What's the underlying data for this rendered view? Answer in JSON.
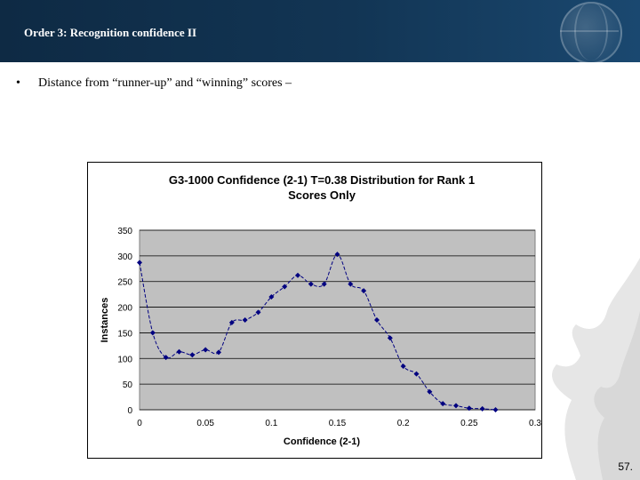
{
  "slide": {
    "title": "Order 3: Recognition confidence II",
    "bullet_symbol": "•",
    "bullet_text": "Distance from “runner-up” and “winning” scores –",
    "page_number": "57."
  },
  "colors": {
    "header_bg": "#123554",
    "plot_bg": "#c0c0c0",
    "series": "#000080"
  },
  "chart_data": {
    "type": "line",
    "title": "G3-1000 Confidence (2-1) T=0.38 Distribution for Rank 1 Scores Only",
    "title_lines": [
      "G3-1000 Confidence (2-1) T=0.38 Distribution for Rank 1",
      "Scores Only"
    ],
    "xlabel": "Confidence (2-1)",
    "ylabel": "Instances",
    "xlim": [
      0,
      0.3
    ],
    "ylim": [
      0,
      350
    ],
    "x_ticks": [
      0,
      0.05,
      0.1,
      0.15,
      0.2,
      0.25,
      0.3
    ],
    "x_tick_labels": [
      "0",
      "0.05",
      "0.1",
      "0.15",
      "0.2",
      "0.25",
      "0.3"
    ],
    "y_ticks": [
      0,
      50,
      100,
      150,
      200,
      250,
      300,
      350
    ],
    "y_tick_labels": [
      "0",
      "50",
      "100",
      "150",
      "200",
      "250",
      "300",
      "350"
    ],
    "grid": "horizontal",
    "legend": "none",
    "series": [
      {
        "x": [
          0,
          0.01,
          0.02,
          0.03,
          0.04,
          0.05,
          0.06,
          0.07,
          0.08,
          0.09,
          0.1,
          0.11,
          0.12,
          0.13,
          0.14,
          0.15,
          0.16,
          0.17,
          0.18,
          0.19,
          0.2,
          0.21,
          0.22,
          0.23,
          0.24,
          0.25,
          0.26,
          0.27
        ],
        "y": [
          287,
          150,
          102,
          113,
          107,
          117,
          112,
          170,
          175,
          190,
          220,
          240,
          262,
          245,
          245,
          303,
          245,
          232,
          175,
          140,
          85,
          70,
          35,
          12,
          8,
          3,
          2,
          0
        ]
      }
    ]
  }
}
